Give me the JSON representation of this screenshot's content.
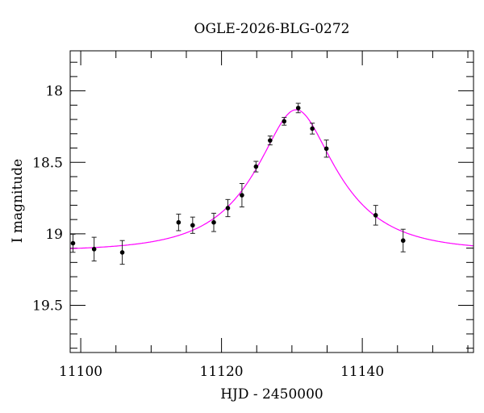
{
  "chart_data": {
    "type": "scatter",
    "title": "OGLE-2026-BLG-0272",
    "xlabel": "HJD - 2450000",
    "ylabel": "I magnitude",
    "xlim": [
      11098.5,
      11155.8
    ],
    "ylim": [
      17.72,
      19.83
    ],
    "y_inverted": true,
    "x_major_ticks": [
      11100,
      11120,
      11140
    ],
    "x_tick_labels": [
      "11100",
      "11120",
      "11140"
    ],
    "x_minor_step": 5,
    "y_major_ticks": [
      18,
      18.5,
      19,
      19.5
    ],
    "y_tick_labels": [
      "18",
      "18.5",
      "19",
      "19.5"
    ],
    "y_minor_step": 0.1,
    "grid": false,
    "series": [
      {
        "name": "data",
        "color": "#000000",
        "x": [
          11098.9,
          11101.9,
          11105.9,
          11113.9,
          11115.9,
          11118.9,
          11120.9,
          11122.9,
          11124.9,
          11126.9,
          11128.9,
          11130.9,
          11132.9,
          11134.9,
          11141.9,
          11145.8
        ],
        "y": [
          19.066,
          19.107,
          19.13,
          18.92,
          18.94,
          18.92,
          18.82,
          18.73,
          18.53,
          18.347,
          18.213,
          18.12,
          18.264,
          18.404,
          18.87,
          19.047
        ],
        "yerr": [
          0.063,
          0.083,
          0.083,
          0.058,
          0.057,
          0.064,
          0.06,
          0.082,
          0.037,
          0.031,
          0.027,
          0.033,
          0.038,
          0.06,
          0.069,
          0.079
        ]
      },
      {
        "name": "model",
        "type": "line",
        "color": "#ff00ff",
        "model": {
          "kind": "paczynski",
          "t0": 11130.6,
          "u0": 0.43,
          "tE": 10.54,
          "m_base": 19.12
        }
      }
    ]
  }
}
